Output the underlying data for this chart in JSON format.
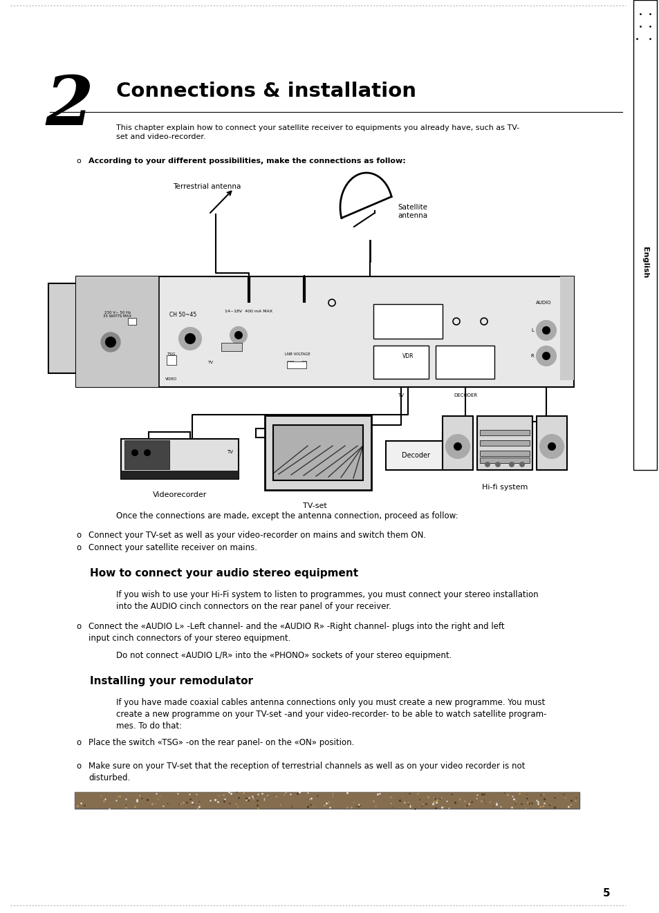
{
  "bg_color": "#ffffff",
  "title": "Connections & installation",
  "chapter_num": "2",
  "sidebar_text": "English",
  "intro_text": "This chapter explain how to connect your satellite receiver to equipments you already have, such as TV-\nset and video-recorder.",
  "bullet_intro": "According to your different possibilities, make the connections as follow:",
  "after_diagram_text": "Once the connections are made, except the antenna connection, proceed as follow:",
  "bullets_after_diagram": [
    "Connect your TV-set as well as your video-recorder on mains and switch them ON.",
    "Connect your satellite receiver on mains."
  ],
  "section1_title": "How to connect your audio stereo equipment",
  "section1_intro": "If you wish to use your Hi-Fi system to listen to programmes, you must connect your stereo installation\ninto the AUDIO cinch connectors on the rear panel of your receiver.",
  "section1_bullets": [
    "Connect the «AUDIO L» -Left channel- and the «AUDIO R» -Right channel- plugs into the right and left\ninput cinch connectors of your stereo equipment."
  ],
  "section1_note": "Do not connect «AUDIO L/R» into the «PHONO» sockets of your stereo equipment.",
  "section2_title": "Installing your remodulator",
  "section2_intro": "If you have made coaxial cables antenna connections only you must create a new programme. You must\ncreate a new programme on your TV-set -and your video-recorder- to be able to watch satellite program-\nmes. To do that:",
  "section2_bullets": [
    "Place the switch «TSG» -on the rear panel- on the «ON» position.",
    "Make sure on your TV-set that the reception of terrestrial channels as well as on your video recorder is not\ndisturbed."
  ],
  "page_number": "5"
}
